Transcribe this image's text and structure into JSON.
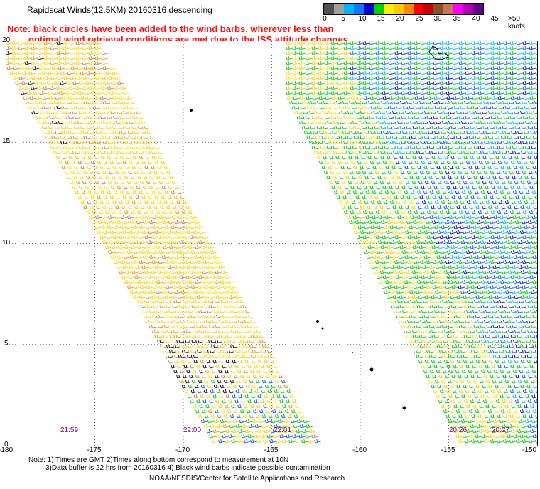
{
  "header": {
    "title": "Rapidscat Winds(12.5KM) 20160316 descending",
    "note_line1": "Note: black circles have been added to the wind barbs, wherever less than",
    "note_line2": "optimal wind retrieval conditions are met due to the ISS attitude changes."
  },
  "colorbar": {
    "colors": [
      "#505050",
      "#a0a0a0",
      "#00b4ff",
      "#0a78ff",
      "#0000cc",
      "#00d200",
      "#fff000",
      "#ffc800",
      "#ff8c00",
      "#ff0000",
      "#c80000",
      "#8c5030",
      "#c87850",
      "#ff00ff",
      "#b400b4",
      "#64008c"
    ],
    "tick_labels": [
      "0",
      "5",
      "10",
      "15",
      "20",
      "25",
      "30",
      "35",
      "40",
      "45",
      ">50 knots"
    ]
  },
  "axes": {
    "y_labels": [
      "20",
      "15",
      "10",
      "5",
      "0"
    ],
    "x_labels": [
      "-180",
      "-175",
      "-170",
      "-165",
      "-160",
      "-155",
      "-150"
    ],
    "x_range": [
      -180,
      -150
    ],
    "y_range": [
      0,
      20
    ]
  },
  "pass_times": [
    "21:59",
    "22:00",
    "22:01",
    "20:26",
    "20:27"
  ],
  "footer": {
    "line1": "Note: 1) Times are GMT 2)Times along bottom correspond to measurement at 10N",
    "line2": "3)Data buffer is 22 hrs from 20160316 4) Black wind barbs indicate possible contamination",
    "credit": "NOAA/NESDIS/Center for Satellite Applications and Research"
  }
}
